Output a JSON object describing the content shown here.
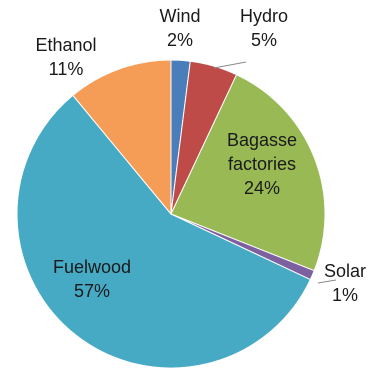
{
  "chart_data": {
    "type": "pie",
    "title": "",
    "legend": "none",
    "start_angle_deg": 0,
    "direction": "clockwise",
    "slices": [
      {
        "label": "Wind",
        "value": 2,
        "display": "2%",
        "color": "#4a7ebb"
      },
      {
        "label": "Hydro",
        "value": 5,
        "display": "5%",
        "color": "#be4b48"
      },
      {
        "label": "Bagasse factories",
        "label_lines": [
          "Bagasse",
          "factories"
        ],
        "value": 24,
        "display": "24%",
        "color": "#98b954"
      },
      {
        "label": "Solar",
        "value": 1,
        "display": "1%",
        "color": "#7d60a0"
      },
      {
        "label": "Fuelwood",
        "value": 57,
        "display": "57%",
        "color": "#46aac5"
      },
      {
        "label": "Ethanol",
        "value": 11,
        "display": "11%",
        "color": "#f59d56"
      }
    ]
  }
}
